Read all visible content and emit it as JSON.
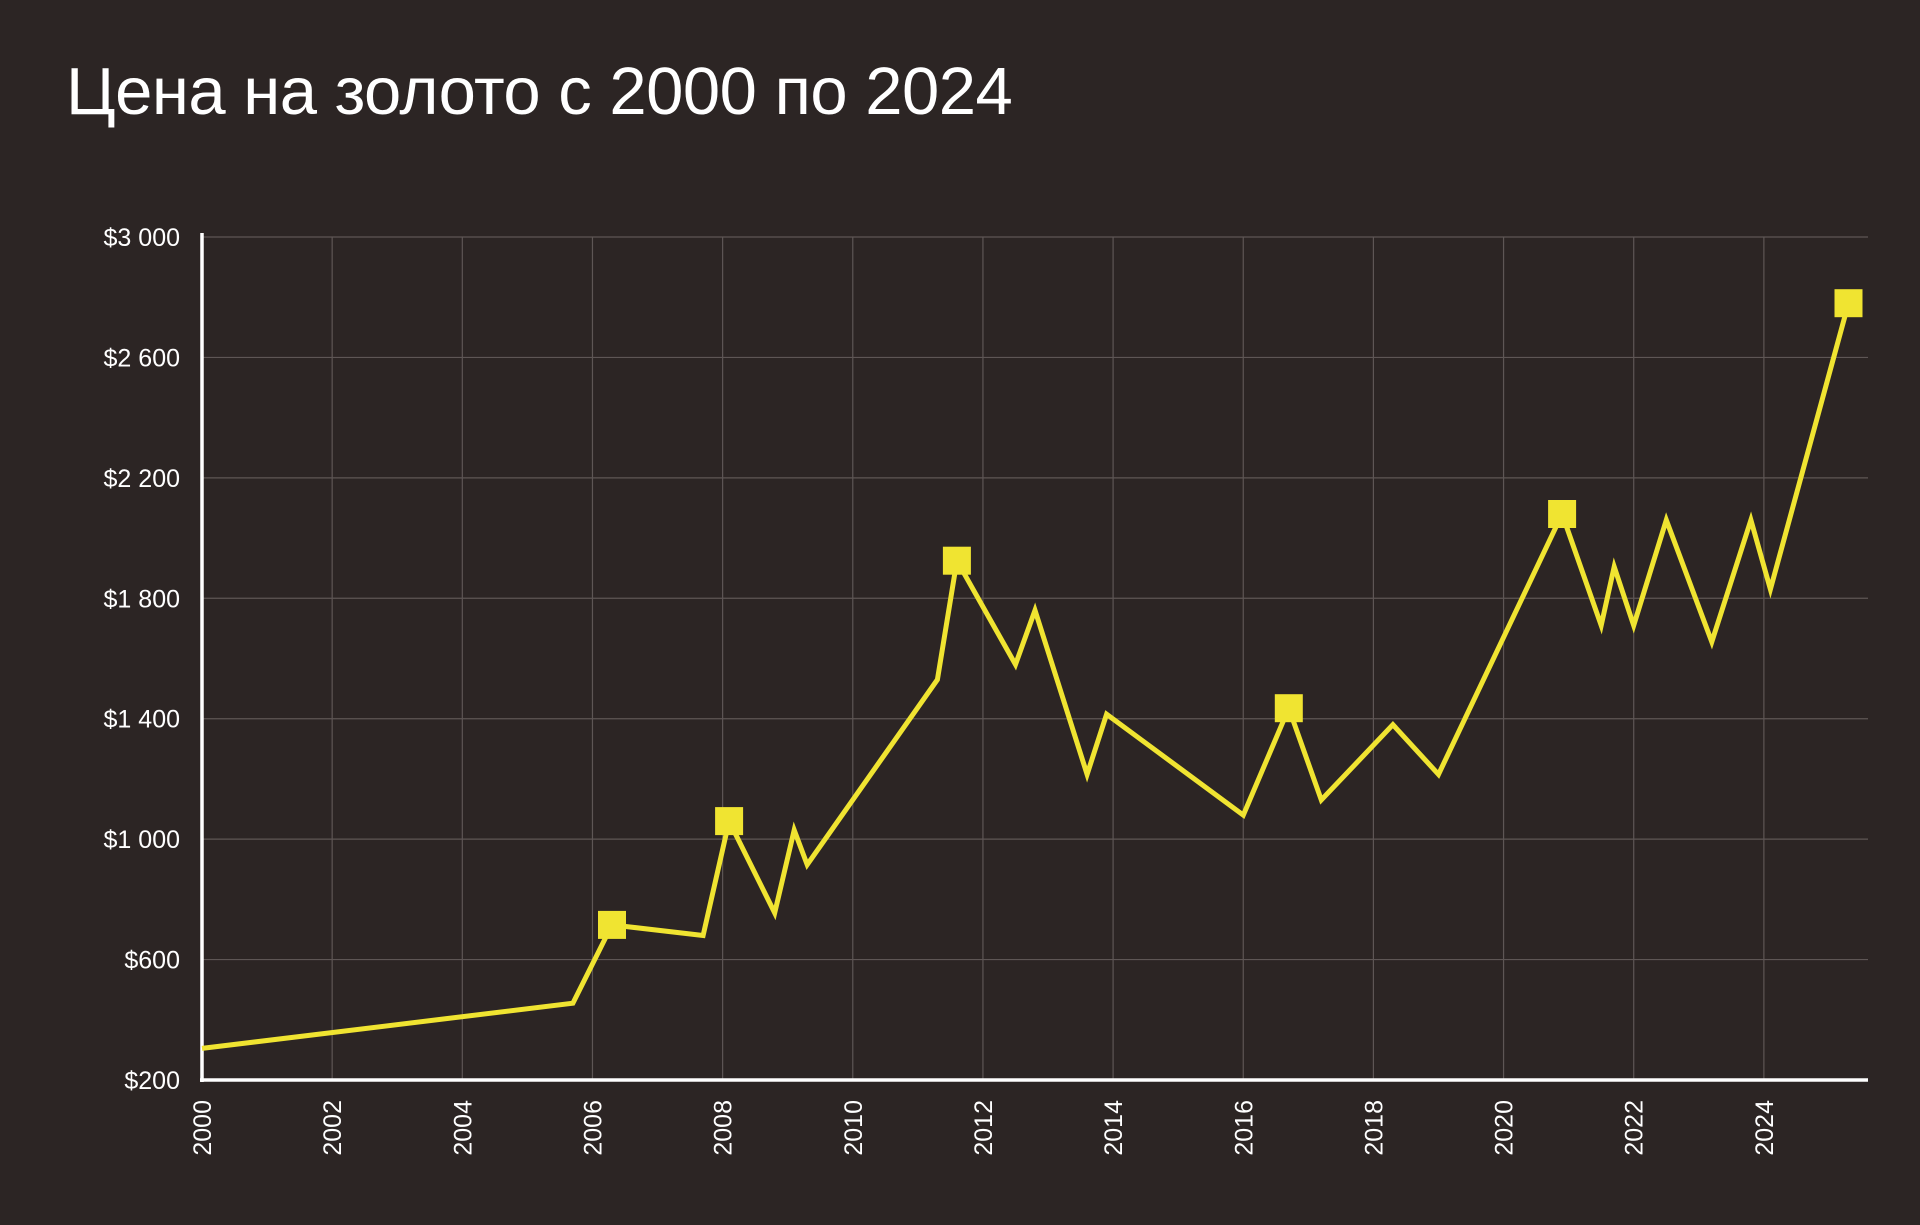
{
  "chart_data": {
    "type": "line",
    "title": "Цена на золото с 2000 по 2024",
    "xlabel": "",
    "ylabel": "",
    "grid": true,
    "xlim": [
      2000,
      2025.6
    ],
    "ylim": [
      200,
      3000
    ],
    "x_ticks": [
      2000,
      2002,
      2004,
      2006,
      2008,
      2010,
      2012,
      2014,
      2016,
      2018,
      2020,
      2022,
      2024
    ],
    "x_tick_labels": [
      "2000",
      "2002",
      "2004",
      "2006",
      "2008",
      "2010",
      "2012",
      "2014",
      "2016",
      "2018",
      "2020",
      "2022",
      "2024"
    ],
    "y_ticks": [
      200,
      600,
      1000,
      1400,
      1800,
      2200,
      2600,
      3000
    ],
    "y_tick_labels": [
      "$200",
      "$600",
      "$1 000",
      "$1 400",
      "$1 800",
      "$2 200",
      "$2 600",
      "$3 000"
    ],
    "colors": {
      "background": "#2c2524",
      "line": "#f0e431",
      "marker": "#f0e431",
      "axis": "#ffffff",
      "grid": "#5e5655",
      "text": "#ffffff"
    },
    "series": [
      {
        "name": "Цена на золото",
        "x": [
          2000.0,
          2005.7,
          2006.3,
          2007.7,
          2008.1,
          2008.8,
          2009.1,
          2009.3,
          2011.3,
          2011.6,
          2012.5,
          2012.8,
          2013.6,
          2013.9,
          2016.0,
          2016.7,
          2017.2,
          2018.3,
          2019.0,
          2020.9,
          2021.5,
          2021.7,
          2022.0,
          2022.5,
          2023.2,
          2023.8,
          2024.1,
          2025.3
        ],
        "y": [
          305,
          455,
          715,
          680,
          1060,
          755,
          1030,
          915,
          1530,
          1925,
          1580,
          1760,
          1215,
          1415,
          1080,
          1435,
          1130,
          1380,
          1215,
          2080,
          1710,
          1905,
          1710,
          2060,
          1655,
          2060,
          1830,
          2780
        ]
      }
    ],
    "highlight_points": [
      {
        "x": 2006.3,
        "y": 715
      },
      {
        "x": 2008.1,
        "y": 1060
      },
      {
        "x": 2011.6,
        "y": 1925
      },
      {
        "x": 2016.7,
        "y": 1435
      },
      {
        "x": 2020.9,
        "y": 2080
      },
      {
        "x": 2025.3,
        "y": 2780
      }
    ]
  }
}
